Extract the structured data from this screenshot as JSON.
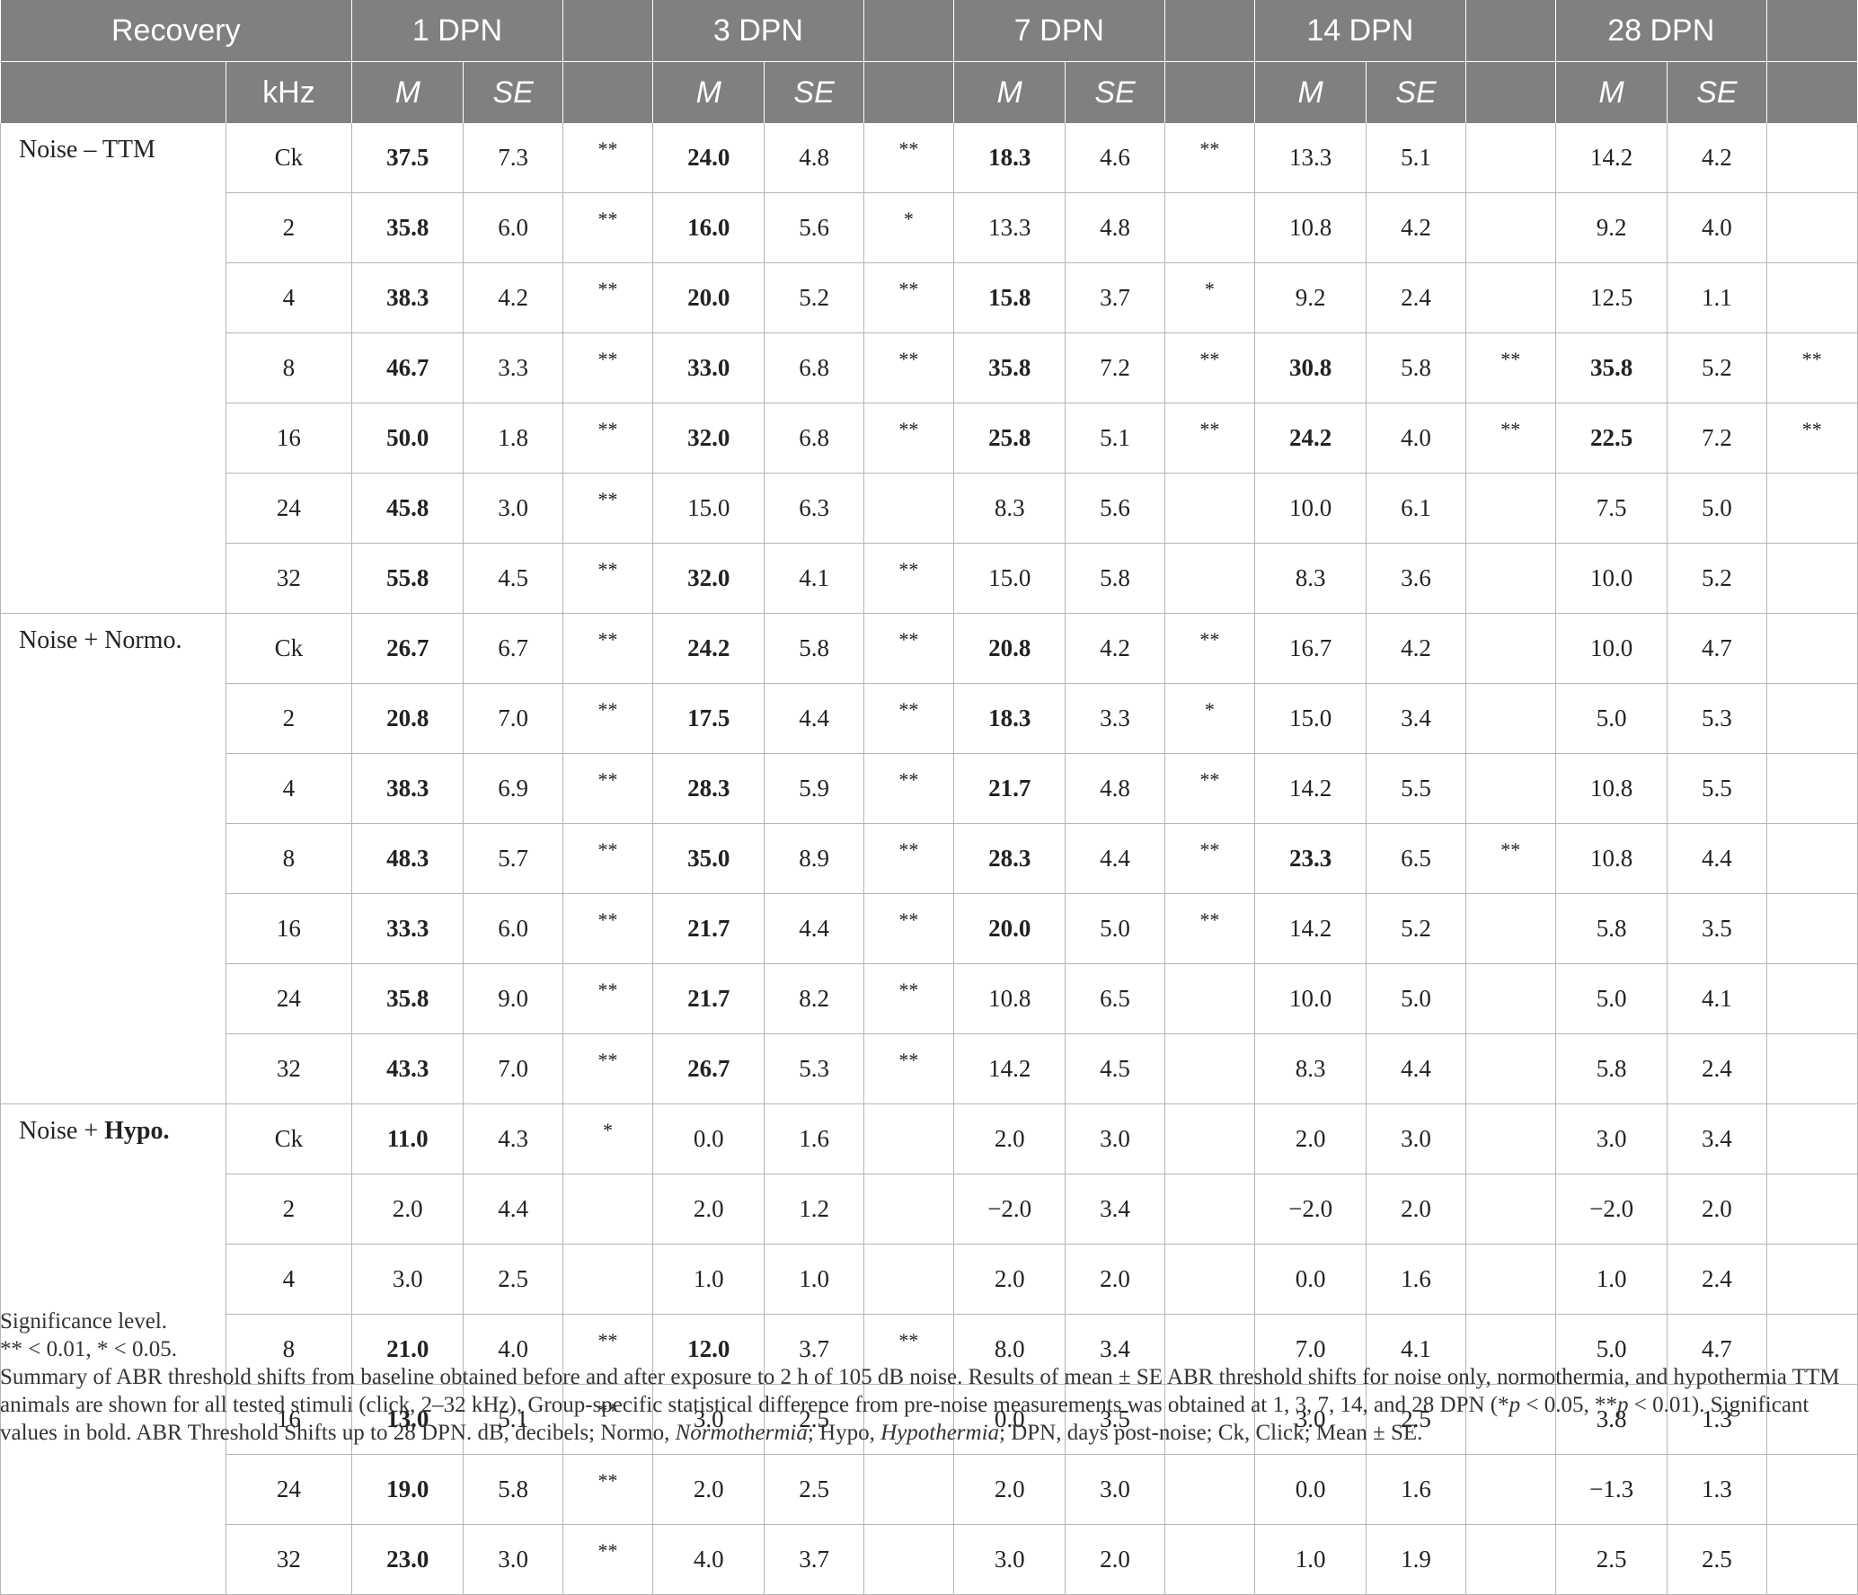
{
  "table": {
    "header_top": [
      "Recovery",
      "1 DPN",
      "3 DPN",
      "7 DPN",
      "14 DPN",
      "28 DPN"
    ],
    "header_sub": {
      "khz": "kHz",
      "m": "M",
      "se": "SE"
    },
    "groups": [
      {
        "label": "Noise – TTM",
        "rows": [
          {
            "khz": "Ck",
            "cells": [
              [
                "37.5",
                "7.3",
                "**",
                true
              ],
              [
                "24.0",
                "4.8",
                "**",
                true
              ],
              [
                "18.3",
                "4.6",
                "**",
                true
              ],
              [
                "13.3",
                "5.1",
                "",
                false
              ],
              [
                "14.2",
                "4.2",
                "",
                false
              ]
            ]
          },
          {
            "khz": "2",
            "cells": [
              [
                "35.8",
                "6.0",
                "**",
                true
              ],
              [
                "16.0",
                "5.6",
                "*",
                true
              ],
              [
                "13.3",
                "4.8",
                "",
                false
              ],
              [
                "10.8",
                "4.2",
                "",
                false
              ],
              [
                "9.2",
                "4.0",
                "",
                false
              ]
            ]
          },
          {
            "khz": "4",
            "cells": [
              [
                "38.3",
                "4.2",
                "**",
                true
              ],
              [
                "20.0",
                "5.2",
                "**",
                true
              ],
              [
                "15.8",
                "3.7",
                "*",
                true
              ],
              [
                "9.2",
                "2.4",
                "",
                false
              ],
              [
                "12.5",
                "1.1",
                "",
                false
              ]
            ]
          },
          {
            "khz": "8",
            "cells": [
              [
                "46.7",
                "3.3",
                "**",
                true
              ],
              [
                "33.0",
                "6.8",
                "**",
                true
              ],
              [
                "35.8",
                "7.2",
                "**",
                true
              ],
              [
                "30.8",
                "5.8",
                "**",
                true
              ],
              [
                "35.8",
                "5.2",
                "**",
                true
              ]
            ]
          },
          {
            "khz": "16",
            "cells": [
              [
                "50.0",
                "1.8",
                "**",
                true
              ],
              [
                "32.0",
                "6.8",
                "**",
                true
              ],
              [
                "25.8",
                "5.1",
                "**",
                true
              ],
              [
                "24.2",
                "4.0",
                "**",
                true
              ],
              [
                "22.5",
                "7.2",
                "**",
                true
              ]
            ]
          },
          {
            "khz": "24",
            "cells": [
              [
                "45.8",
                "3.0",
                "**",
                true
              ],
              [
                "15.0",
                "6.3",
                "",
                false
              ],
              [
                "8.3",
                "5.6",
                "",
                false
              ],
              [
                "10.0",
                "6.1",
                "",
                false
              ],
              [
                "7.5",
                "5.0",
                "",
                false
              ]
            ]
          },
          {
            "khz": "32",
            "cells": [
              [
                "55.8",
                "4.5",
                "**",
                true
              ],
              [
                "32.0",
                "4.1",
                "**",
                true
              ],
              [
                "15.0",
                "5.8",
                "",
                false
              ],
              [
                "8.3",
                "3.6",
                "",
                false
              ],
              [
                "10.0",
                "5.2",
                "",
                false
              ]
            ]
          }
        ]
      },
      {
        "label": "Noise + Normo.",
        "rows": [
          {
            "khz": "Ck",
            "cells": [
              [
                "26.7",
                "6.7",
                "**",
                true
              ],
              [
                "24.2",
                "5.8",
                "**",
                true
              ],
              [
                "20.8",
                "4.2",
                "**",
                true
              ],
              [
                "16.7",
                "4.2",
                "",
                false
              ],
              [
                "10.0",
                "4.7",
                "",
                false
              ]
            ]
          },
          {
            "khz": "2",
            "cells": [
              [
                "20.8",
                "7.0",
                "**",
                true
              ],
              [
                "17.5",
                "4.4",
                "**",
                true
              ],
              [
                "18.3",
                "3.3",
                "*",
                true
              ],
              [
                "15.0",
                "3.4",
                "",
                false
              ],
              [
                "5.0",
                "5.3",
                "",
                false
              ]
            ]
          },
          {
            "khz": "4",
            "cells": [
              [
                "38.3",
                "6.9",
                "**",
                true
              ],
              [
                "28.3",
                "5.9",
                "**",
                true
              ],
              [
                "21.7",
                "4.8",
                "**",
                true
              ],
              [
                "14.2",
                "5.5",
                "",
                false
              ],
              [
                "10.8",
                "5.5",
                "",
                false
              ]
            ]
          },
          {
            "khz": "8",
            "cells": [
              [
                "48.3",
                "5.7",
                "**",
                true
              ],
              [
                "35.0",
                "8.9",
                "**",
                true
              ],
              [
                "28.3",
                "4.4",
                "**",
                true
              ],
              [
                "23.3",
                "6.5",
                "**",
                true
              ],
              [
                "10.8",
                "4.4",
                "",
                false
              ]
            ]
          },
          {
            "khz": "16",
            "cells": [
              [
                "33.3",
                "6.0",
                "**",
                true
              ],
              [
                "21.7",
                "4.4",
                "**",
                true
              ],
              [
                "20.0",
                "5.0",
                "**",
                true
              ],
              [
                "14.2",
                "5.2",
                "",
                false
              ],
              [
                "5.8",
                "3.5",
                "",
                false
              ]
            ]
          },
          {
            "khz": "24",
            "cells": [
              [
                "35.8",
                "9.0",
                "**",
                true
              ],
              [
                "21.7",
                "8.2",
                "**",
                true
              ],
              [
                "10.8",
                "6.5",
                "",
                false
              ],
              [
                "10.0",
                "5.0",
                "",
                false
              ],
              [
                "5.0",
                "4.1",
                "",
                false
              ]
            ]
          },
          {
            "khz": "32",
            "cells": [
              [
                "43.3",
                "7.0",
                "**",
                true
              ],
              [
                "26.7",
                "5.3",
                "**",
                true
              ],
              [
                "14.2",
                "4.5",
                "",
                false
              ],
              [
                "8.3",
                "4.4",
                "",
                false
              ],
              [
                "5.8",
                "2.4",
                "",
                false
              ]
            ]
          }
        ]
      },
      {
        "label_prefix": "Noise + ",
        "label_bold": "Hypo.",
        "rows": [
          {
            "khz": "Ck",
            "cells": [
              [
                "11.0",
                "4.3",
                "*",
                true
              ],
              [
                "0.0",
                "1.6",
                "",
                false
              ],
              [
                "2.0",
                "3.0",
                "",
                false
              ],
              [
                "2.0",
                "3.0",
                "",
                false
              ],
              [
                "3.0",
                "3.4",
                "",
                false
              ]
            ]
          },
          {
            "khz": "2",
            "cells": [
              [
                "2.0",
                "4.4",
                "",
                false
              ],
              [
                "2.0",
                "1.2",
                "",
                false
              ],
              [
                "−2.0",
                "3.4",
                "",
                false
              ],
              [
                "−2.0",
                "2.0",
                "",
                false
              ],
              [
                "−2.0",
                "2.0",
                "",
                false
              ]
            ]
          },
          {
            "khz": "4",
            "cells": [
              [
                "3.0",
                "2.5",
                "",
                false
              ],
              [
                "1.0",
                "1.0",
                "",
                false
              ],
              [
                "2.0",
                "2.0",
                "",
                false
              ],
              [
                "0.0",
                "1.6",
                "",
                false
              ],
              [
                "1.0",
                "2.4",
                "",
                false
              ]
            ]
          },
          {
            "khz": "8",
            "cells": [
              [
                "21.0",
                "4.0",
                "**",
                true
              ],
              [
                "12.0",
                "3.7",
                "**",
                true
              ],
              [
                "8.0",
                "3.4",
                "",
                false
              ],
              [
                "7.0",
                "4.1",
                "",
                false
              ],
              [
                "5.0",
                "4.7",
                "",
                false
              ]
            ]
          },
          {
            "khz": "16",
            "cells": [
              [
                "13.0",
                "5.1",
                "**",
                true
              ],
              [
                "3.0",
                "2.5",
                "",
                false
              ],
              [
                "0.0",
                "3.5",
                "",
                false
              ],
              [
                "3.0",
                "2.5",
                "",
                false
              ],
              [
                "3.8",
                "1.3",
                "",
                false
              ]
            ]
          },
          {
            "khz": "24",
            "cells": [
              [
                "19.0",
                "5.8",
                "**",
                true
              ],
              [
                "2.0",
                "2.5",
                "",
                false
              ],
              [
                "2.0",
                "3.0",
                "",
                false
              ],
              [
                "0.0",
                "1.6",
                "",
                false
              ],
              [
                "−1.3",
                "1.3",
                "",
                false
              ]
            ]
          },
          {
            "khz": "32",
            "cells": [
              [
                "23.0",
                "3.0",
                "**",
                true
              ],
              [
                "4.0",
                "3.7",
                "",
                false
              ],
              [
                "3.0",
                "2.0",
                "",
                false
              ],
              [
                "1.0",
                "1.9",
                "",
                false
              ],
              [
                "2.5",
                "2.5",
                "",
                false
              ]
            ]
          }
        ]
      }
    ]
  },
  "footnotes": {
    "line1": "Significance level.",
    "line2": "** < 0.01, * < 0.05.",
    "caption_a": "Summary of ABR threshold shifts from baseline obtained before and after exposure to 2 h of 105 dB noise. Results of mean ± SE ABR threshold shifts for noise only, normothermia, and hypothermia TTM animals are shown for all tested stimuli (click, 2–32 kHz). Group-specific statistical difference from pre-noise measurements was obtained at 1, 3, 7, 14, and 28 DPN (",
    "caption_p1_pre": "*",
    "caption_p": "p",
    "caption_p1_post": " < 0.05, **",
    "caption_p2_post": " < 0.01). Significant values in bold. ABR Threshold Shifts up to 28 DPN. dB, decibels; Normo, ",
    "caption_normothermia": "Normothermia",
    "caption_mid": "; Hypo, ",
    "caption_hypothermia": "Hypothermia",
    "caption_end": "; DPN, days post-noise; Ck, Click; Mean ± SE."
  }
}
